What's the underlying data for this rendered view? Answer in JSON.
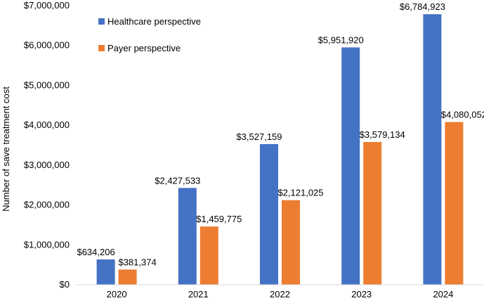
{
  "chart_data": {
    "type": "bar",
    "title": "",
    "xlabel": "",
    "ylabel": "Number of save treatment cost",
    "categories": [
      "2020",
      "2021",
      "2022",
      "2023",
      "2024"
    ],
    "series": [
      {
        "name": "Healthcare perspective",
        "color": "#4472C4",
        "values": [
          634206,
          2427533,
          3527159,
          5951920,
          6784923
        ],
        "labels": [
          "$634,206",
          "$2,427,533",
          "$3,527,159",
          "$5,951,920",
          "$6,784,923"
        ]
      },
      {
        "name": "Payer perspective",
        "color": "#ED7D31",
        "values": [
          381374,
          1459775,
          2121025,
          3579134,
          4080052
        ],
        "labels": [
          "$381,374",
          "$1,459,775",
          "$2,121,025",
          "$3,579,134",
          "$4,080,052"
        ]
      }
    ],
    "ylim": [
      0,
      7000000
    ],
    "yticks": [
      0,
      1000000,
      2000000,
      3000000,
      4000000,
      5000000,
      6000000,
      7000000
    ],
    "ytick_labels": [
      "$0",
      "$1,000,000",
      "$2,000,000",
      "$3,000,000",
      "$4,000,000",
      "$5,000,000",
      "$6,000,000",
      "$7,000,000"
    ],
    "grid": false,
    "legend_position": "top-left"
  }
}
